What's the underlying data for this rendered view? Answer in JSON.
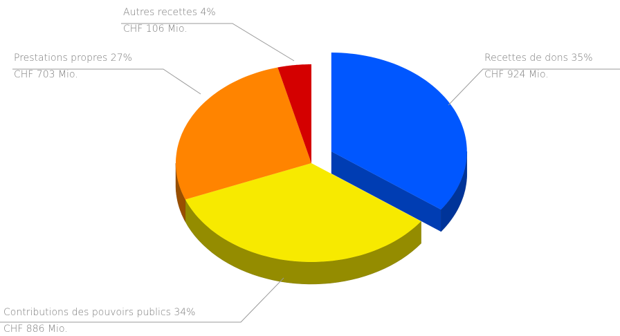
{
  "chart_data": {
    "type": "pie",
    "categories": [
      "Recettes de dons",
      "Contributions des pouvoirs publics",
      "Prestations propres",
      "Autres recettes"
    ],
    "values": [
      35,
      34,
      27,
      4
    ],
    "value_labels": [
      "35%",
      "34%",
      "27%",
      "4%"
    ],
    "amounts": [
      924,
      886,
      703,
      106
    ],
    "amount_labels": [
      "CHF 924 Mio.",
      "CHF 886 Mio.",
      "CHF 703 Mio.",
      "CHF 106 Mio."
    ],
    "colors": [
      "#0057ff",
      "#f7ea00",
      "#ff8400",
      "#d40000"
    ],
    "explode": [
      true,
      false,
      false,
      false
    ]
  }
}
